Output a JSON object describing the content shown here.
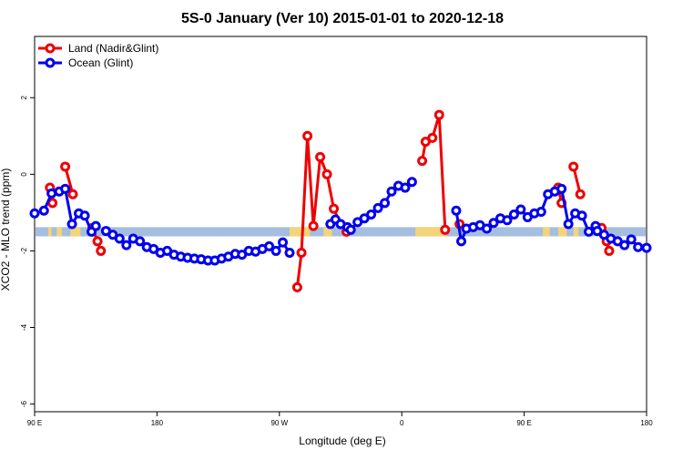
{
  "chart_data": {
    "type": "line",
    "title": "5S-0 January (Ver 10)   2015-01-01 to 2020-12-18",
    "xlabel": "Longitude (deg E)",
    "ylabel": "XCO2 - MLO trend (ppm)",
    "xlim": [
      90,
      450
    ],
    "ylim": [
      -6.2,
      3.6
    ],
    "x_ticks": [
      {
        "value": 90,
        "label": "90 E"
      },
      {
        "value": 162,
        "label": "180"
      },
      {
        "value": 234,
        "label": "90 W"
      },
      {
        "value": 306,
        "label": "0"
      },
      {
        "value": 378,
        "label": "90 E"
      },
      {
        "value": 450,
        "label": "180"
      }
    ],
    "y_ticks": [
      {
        "value": 2,
        "label": "2"
      },
      {
        "value": 0,
        "label": "0"
      },
      {
        "value": -2,
        "label": "-2"
      },
      {
        "value": -4,
        "label": "-4"
      },
      {
        "value": -6,
        "label": "-6"
      }
    ],
    "grid": false,
    "legend_position": "top-left",
    "band": {
      "y_range": [
        -1.62,
        -1.38
      ],
      "color": "#a5bedf",
      "land_color": "#f2d479",
      "land_segments": [
        [
          98,
          100
        ],
        [
          103,
          106
        ],
        [
          111,
          117
        ],
        [
          240,
          252
        ],
        [
          260,
          265
        ],
        [
          314,
          332
        ],
        [
          389,
          393
        ],
        [
          398,
          403
        ],
        [
          407,
          410
        ]
      ]
    },
    "series": [
      {
        "name": "Land (Nadir&Glint)",
        "color": "#ee0000",
        "segments": [
          [
            [
              99.0,
              -0.35
            ],
            [
              100.5,
              -0.75
            ]
          ],
          [
            [
              108.0,
              0.2
            ],
            [
              112.5,
              -0.52
            ]
          ],
          [
            [
              124.0,
              -1.4
            ],
            [
              127.0,
              -1.75
            ],
            [
              129.0,
              -2.0
            ]
          ],
          [
            [
              244.5,
              -2.95
            ],
            [
              247.0,
              -2.05
            ],
            [
              250.5,
              1.0
            ],
            [
              254.0,
              -1.35
            ],
            [
              258.0,
              0.45
            ],
            [
              262.0,
              0.0
            ],
            [
              266.0,
              -0.9
            ],
            [
              270.0,
              -1.3
            ],
            [
              273.5,
              -1.5
            ]
          ],
          [
            [
              318.0,
              0.35
            ],
            [
              320.0,
              0.85
            ],
            [
              324.0,
              0.95
            ],
            [
              328.0,
              1.55
            ],
            [
              331.5,
              -1.45
            ]
          ],
          [
            [
              340.0,
              -1.3
            ]
          ],
          [
            [
              398.0,
              -0.35
            ],
            [
              400.0,
              -0.75
            ]
          ],
          [
            [
              407.0,
              0.2
            ],
            [
              411.0,
              -0.52
            ]
          ],
          [
            [
              423.5,
              -1.4
            ],
            [
              426.5,
              -1.75
            ],
            [
              428.0,
              -2.0
            ]
          ]
        ]
      },
      {
        "name": "Ocean (Glint)",
        "color": "#0000ee",
        "segments": [
          [
            [
              90.0,
              -1.02
            ],
            [
              95.5,
              -0.95
            ],
            [
              100.0,
              -0.5
            ],
            [
              104.5,
              -0.45
            ],
            [
              108.0,
              -0.38
            ],
            [
              112.0,
              -1.3
            ],
            [
              116.0,
              -1.02
            ],
            [
              119.5,
              -1.08
            ],
            [
              123.5,
              -1.5
            ],
            [
              126.0,
              -1.35
            ]
          ],
          [
            [
              132.0,
              -1.48
            ],
            [
              136.0,
              -1.58
            ],
            [
              140.0,
              -1.68
            ],
            [
              144.0,
              -1.85
            ],
            [
              148.0,
              -1.68
            ],
            [
              152.0,
              -1.75
            ],
            [
              156.0,
              -1.9
            ],
            [
              160.0,
              -1.95
            ],
            [
              164.0,
              -2.05
            ],
            [
              168.0,
              -2.0
            ],
            [
              172.0,
              -2.1
            ],
            [
              176.0,
              -2.15
            ],
            [
              180.0,
              -2.18
            ],
            [
              184.0,
              -2.2
            ],
            [
              188.0,
              -2.22
            ],
            [
              192.0,
              -2.25
            ],
            [
              196.0,
              -2.25
            ],
            [
              200.0,
              -2.2
            ],
            [
              204.0,
              -2.15
            ],
            [
              208.0,
              -2.08
            ],
            [
              212.0,
              -2.1
            ],
            [
              216.0,
              -2.0
            ],
            [
              220.0,
              -2.02
            ],
            [
              224.0,
              -1.95
            ],
            [
              228.0,
              -1.88
            ],
            [
              232.0,
              -2.0
            ],
            [
              236.0,
              -1.78
            ],
            [
              240.0,
              -2.05
            ]
          ],
          [
            [
              264.0,
              -1.3
            ],
            [
              267.0,
              -1.18
            ],
            [
              270.0,
              -1.3
            ],
            [
              274.0,
              -1.38
            ],
            [
              276.0,
              -1.45
            ],
            [
              280.0,
              -1.25
            ],
            [
              284.0,
              -1.15
            ],
            [
              288.0,
              -1.05
            ],
            [
              292.0,
              -0.88
            ],
            [
              296.0,
              -0.75
            ],
            [
              300.0,
              -0.45
            ],
            [
              304.0,
              -0.3
            ],
            [
              308.0,
              -0.35
            ],
            [
              312.0,
              -0.2
            ]
          ],
          [
            [
              338.0,
              -0.95
            ],
            [
              341.0,
              -1.75
            ],
            [
              344.0,
              -1.42
            ],
            [
              348.0,
              -1.38
            ],
            [
              352.0,
              -1.33
            ],
            [
              356.0,
              -1.42
            ],
            [
              360.0,
              -1.27
            ],
            [
              364.0,
              -1.15
            ],
            [
              368.0,
              -1.2
            ],
            [
              372.0,
              -1.05
            ],
            [
              376.0,
              -0.92
            ],
            [
              380.0,
              -1.12
            ],
            [
              384.0,
              -1.02
            ],
            [
              388.0,
              -0.98
            ],
            [
              392.0,
              -0.52
            ],
            [
              396.0,
              -0.45
            ],
            [
              400.0,
              -0.38
            ],
            [
              404.0,
              -1.3
            ],
            [
              408.0,
              -1.02
            ],
            [
              412.0,
              -1.08
            ],
            [
              416.0,
              -1.5
            ],
            [
              420.0,
              -1.35
            ]
          ],
          [
            [
              421.0,
              -1.48
            ],
            [
              425.0,
              -1.58
            ],
            [
              429.0,
              -1.68
            ],
            [
              433.0,
              -1.75
            ],
            [
              437.0,
              -1.85
            ],
            [
              441.0,
              -1.7
            ],
            [
              445.0,
              -1.9
            ],
            [
              450.0,
              -1.92
            ]
          ]
        ]
      }
    ]
  }
}
